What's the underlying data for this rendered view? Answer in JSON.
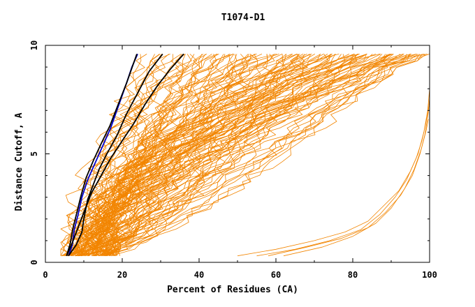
{
  "chart_data": {
    "type": "line",
    "title": "T1074-D1",
    "xlabel": "Percent of Residues (CA)",
    "ylabel": "Distance Cutoff, A",
    "xlim": [
      0,
      100
    ],
    "ylim": [
      0,
      10
    ],
    "x_ticks": [
      0,
      20,
      40,
      60,
      80,
      100
    ],
    "x_tick_labels": [
      "0",
      "20",
      "40",
      "60",
      "80",
      "100"
    ],
    "y_ticks": [
      0,
      5,
      10
    ],
    "y_tick_labels": [
      "0",
      "5",
      "10"
    ],
    "colors": {
      "background_models": "#f28500",
      "highlight_black": "#000000",
      "highlight_blue": "#0000cc"
    },
    "series": [
      {
        "color": "#0000cc",
        "x": [
          6,
          7,
          7.5,
          8.5,
          9.5,
          11,
          13,
          15,
          17,
          19,
          21,
          22.5,
          24
        ],
        "y": [
          0.3,
          0.8,
          1.5,
          2.2,
          3.0,
          3.8,
          4.6,
          5.4,
          6.2,
          7.2,
          8.2,
          9.0,
          9.6
        ]
      },
      {
        "color": "#000000",
        "x": [
          5.5,
          6.5,
          7.2,
          8.2,
          9.3,
          10.6,
          12.5,
          14.6,
          16.8,
          19.0,
          21.2,
          22.6,
          23.8
        ],
        "y": [
          0.3,
          0.9,
          1.6,
          2.3,
          3.1,
          3.9,
          4.7,
          5.5,
          6.3,
          7.3,
          8.3,
          9.0,
          9.6
        ]
      },
      {
        "color": "#000000",
        "x": [
          6,
          8,
          9.5,
          10,
          11,
          12.5,
          14,
          16,
          18.5,
          21,
          24,
          27,
          30.5
        ],
        "y": [
          0.3,
          0.8,
          1.4,
          2.0,
          2.9,
          3.6,
          4.3,
          5.0,
          5.8,
          6.8,
          7.8,
          8.8,
          9.6
        ]
      },
      {
        "color": "#000000",
        "x": [
          5.5,
          7,
          8.5,
          10,
          12,
          14.5,
          17,
          20,
          23,
          26,
          29,
          32.5,
          36
        ],
        "y": [
          0.3,
          0.9,
          1.6,
          2.3,
          3.2,
          4.0,
          4.8,
          5.6,
          6.4,
          7.3,
          8.1,
          8.9,
          9.6
        ]
      },
      {
        "color": "#f28500",
        "x": [
          50,
          60,
          70,
          78,
          84,
          88,
          92,
          95,
          97,
          98.5,
          99.5,
          100
        ],
        "y": [
          0.3,
          0.6,
          1.0,
          1.4,
          1.9,
          2.6,
          3.3,
          4.2,
          5.0,
          6.0,
          7.0,
          8.0
        ]
      },
      {
        "color": "#f28500",
        "x": [
          55,
          65,
          74,
          82,
          87,
          91,
          94,
          96.5,
          98,
          99,
          99.8
        ],
        "y": [
          0.3,
          0.6,
          1.0,
          1.5,
          2.2,
          3.0,
          3.8,
          4.8,
          5.6,
          6.4,
          7.2
        ]
      },
      {
        "color": "#f28500",
        "x": [
          58,
          68,
          77,
          84,
          88.5,
          92.5,
          95.5,
          97.5,
          98.8,
          99.6,
          100
        ],
        "y": [
          0.3,
          0.7,
          1.1,
          1.6,
          2.3,
          3.1,
          4.0,
          5.0,
          5.9,
          6.8,
          7.6
        ]
      },
      {
        "color": "#f28500",
        "x": [
          62,
          72,
          80,
          86,
          90,
          93.5,
          96,
          97.8,
          99,
          99.7
        ],
        "y": [
          0.3,
          0.7,
          1.2,
          1.8,
          2.5,
          3.4,
          4.3,
          5.2,
          6.0,
          6.6
        ]
      }
    ]
  }
}
